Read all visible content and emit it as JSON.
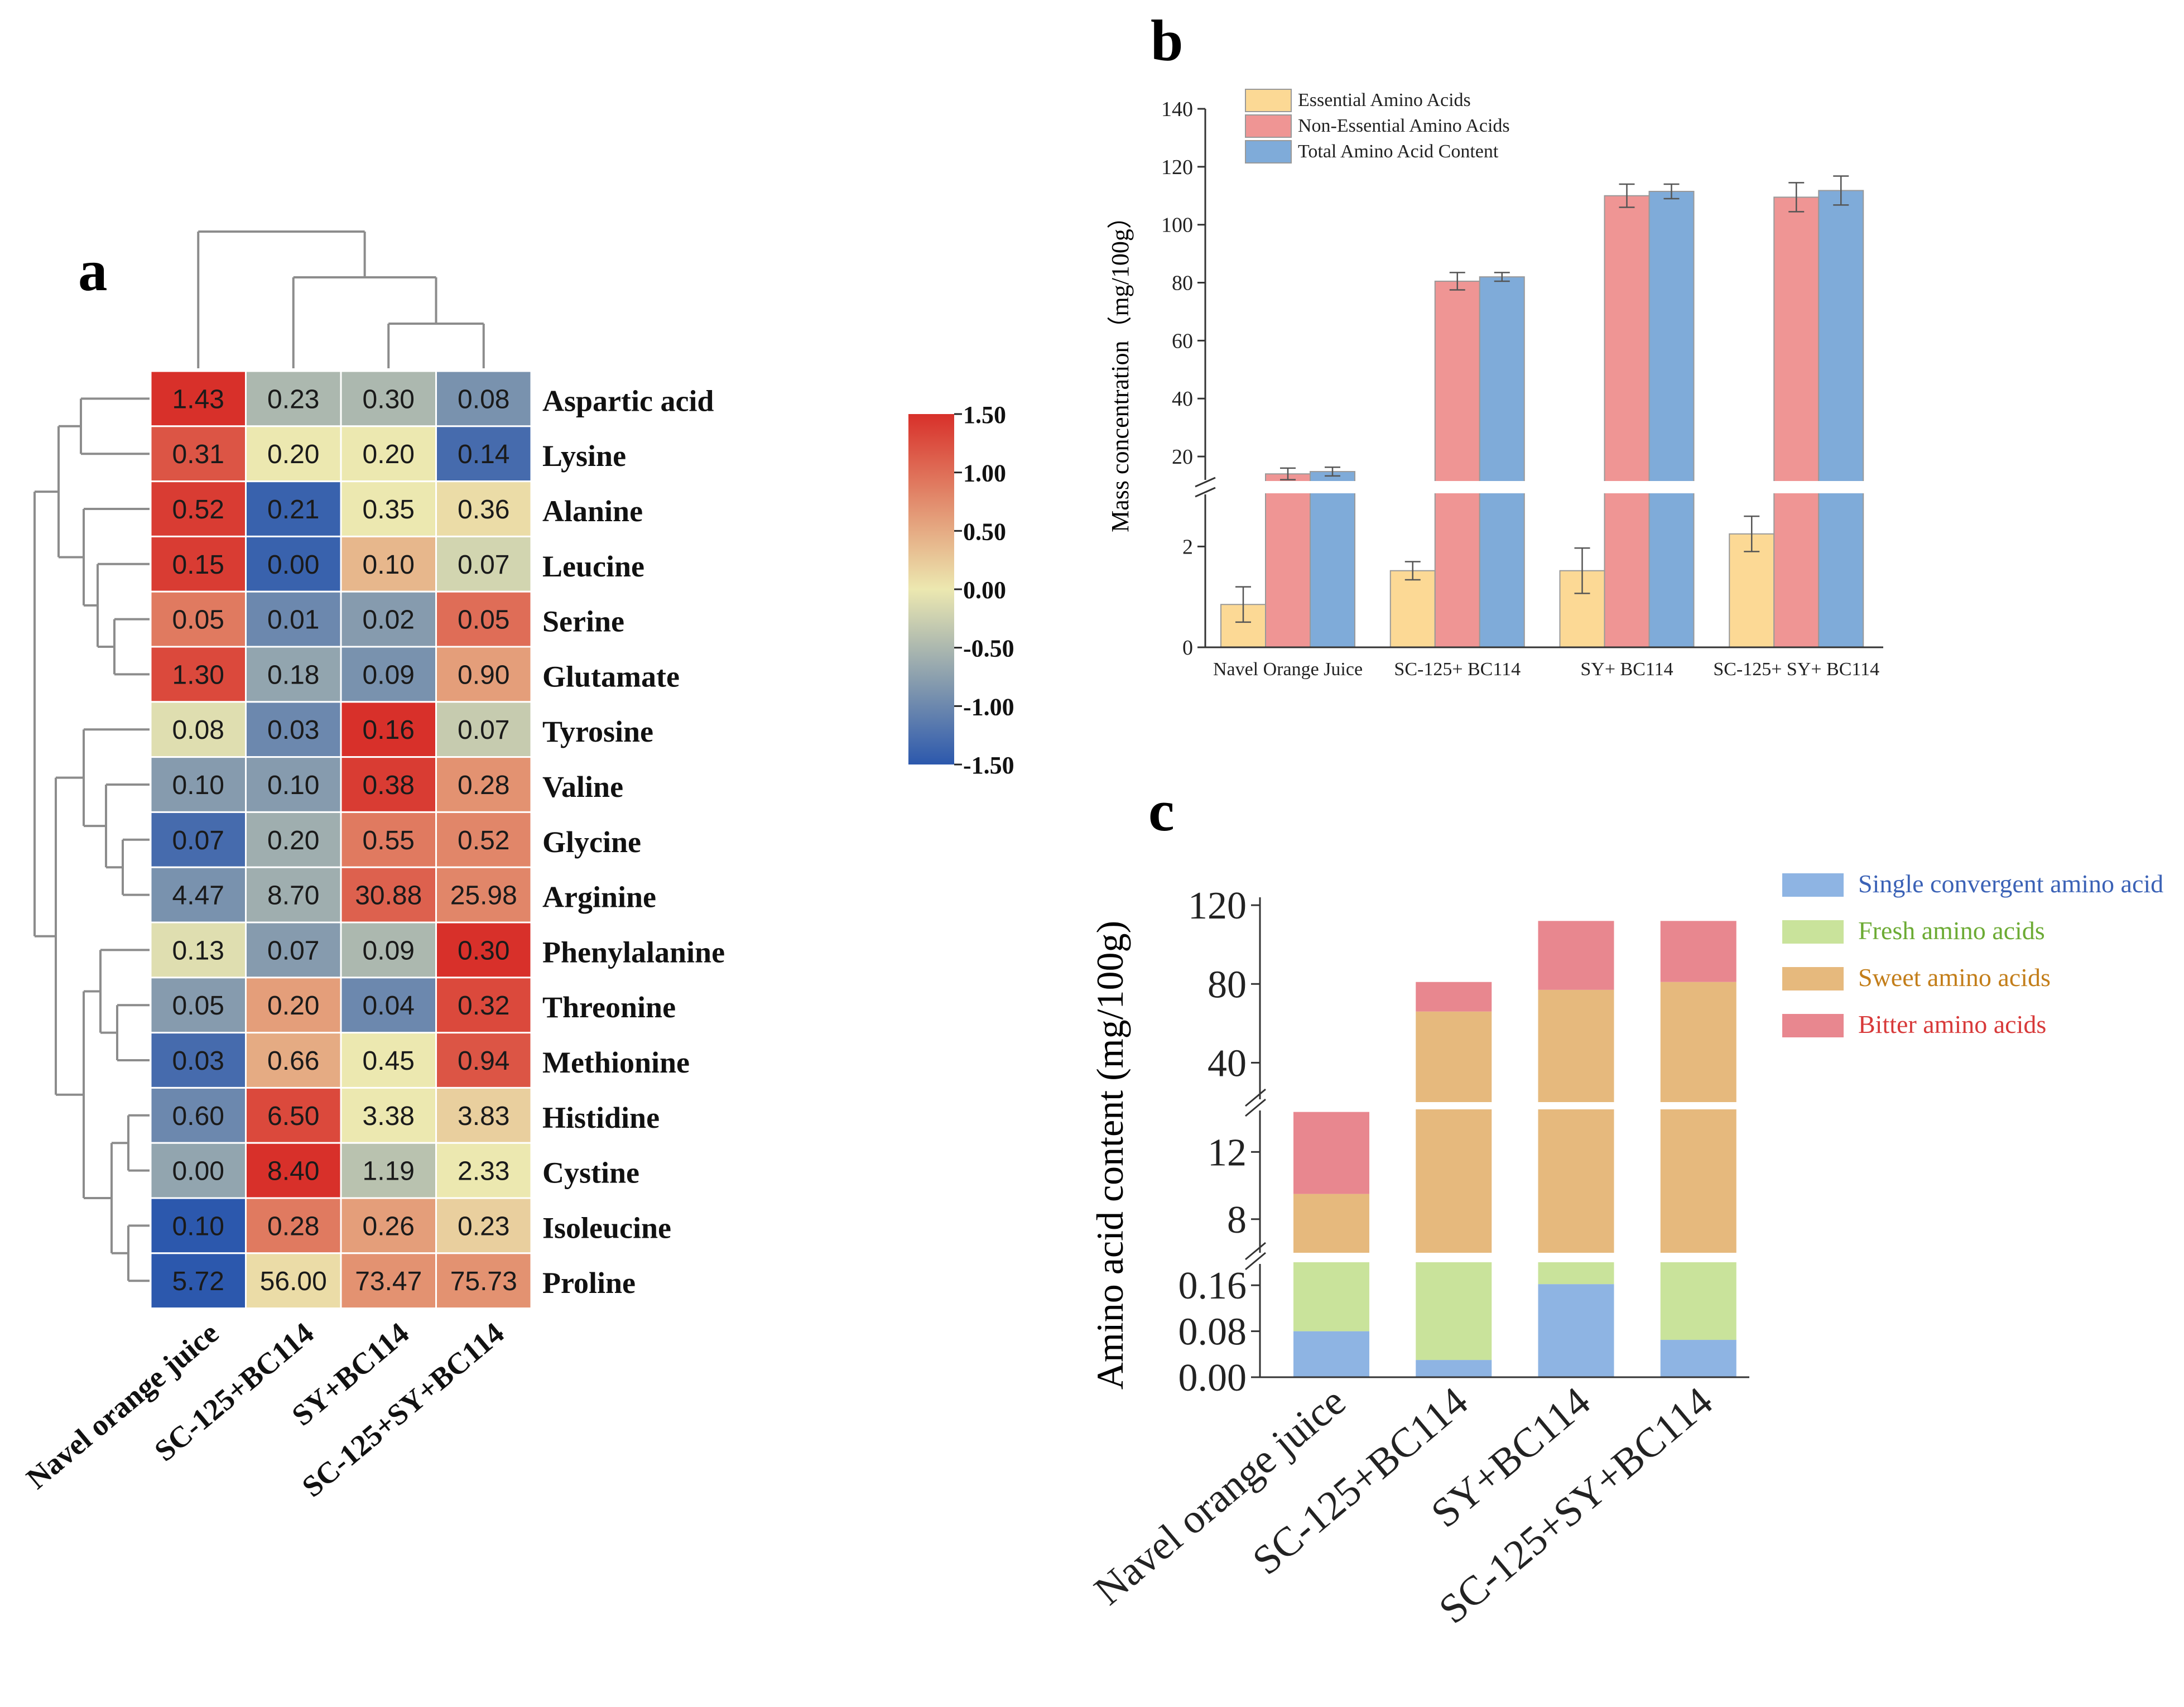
{
  "chart_data": [
    {
      "type": "heatmap",
      "panel_label": "a",
      "columns": [
        "Navel orange juice",
        "SC-125+BC114",
        "SY+BC114",
        "SC-125+SY+BC114"
      ],
      "rows": [
        "Aspartic acid",
        "Lysine",
        "Alanine",
        "Leucine",
        "Serine",
        "Glutamate",
        "Tyrosine",
        "Valine",
        "Glycine",
        "Arginine",
        "Phenylalanine",
        "Threonine",
        "Methionine",
        "Histidine",
        "Cystine",
        "Isoleucine",
        "Proline"
      ],
      "values": [
        [
          "1.43",
          "0.23",
          "0.30",
          "0.08"
        ],
        [
          "0.31",
          "0.20",
          "0.20",
          "0.14"
        ],
        [
          "0.52",
          "0.21",
          "0.35",
          "0.36"
        ],
        [
          "0.15",
          "0.00",
          "0.10",
          "0.07"
        ],
        [
          "0.05",
          "0.01",
          "0.02",
          "0.05"
        ],
        [
          "1.30",
          "0.18",
          "0.09",
          "0.90"
        ],
        [
          "0.08",
          "0.03",
          "0.16",
          "0.07"
        ],
        [
          "0.10",
          "0.10",
          "0.38",
          "0.28"
        ],
        [
          "0.07",
          "0.20",
          "0.55",
          "0.52"
        ],
        [
          "4.47",
          "8.70",
          "30.88",
          "25.98"
        ],
        [
          "0.13",
          "0.07",
          "0.09",
          "0.30"
        ],
        [
          "0.05",
          "0.20",
          "0.04",
          "0.32"
        ],
        [
          "0.03",
          "0.66",
          "0.45",
          "0.94"
        ],
        [
          "0.60",
          "6.50",
          "3.38",
          "3.83"
        ],
        [
          "0.00",
          "8.40",
          "1.19",
          "2.33"
        ],
        [
          "0.10",
          "0.28",
          "0.26",
          "0.23"
        ],
        [
          "5.72",
          "56.00",
          "73.47",
          "75.73"
        ]
      ],
      "z_scores": [
        [
          1.5,
          -0.5,
          -0.5,
          -0.9
        ],
        [
          1.2,
          0.0,
          0.0,
          -1.3
        ],
        [
          1.4,
          -1.4,
          0.0,
          0.1
        ],
        [
          1.4,
          -1.4,
          0.4,
          -0.2
        ],
        [
          0.9,
          -1.0,
          -0.8,
          1.0
        ],
        [
          1.3,
          -0.7,
          -0.9,
          0.6
        ],
        [
          -0.1,
          -1.0,
          1.5,
          -0.3
        ],
        [
          -0.8,
          -0.8,
          1.4,
          0.7
        ],
        [
          -1.3,
          -0.6,
          0.9,
          0.8
        ],
        [
          -0.9,
          -0.6,
          1.1,
          0.8
        ],
        [
          -0.1,
          -0.8,
          -0.5,
          1.5
        ],
        [
          -0.8,
          0.6,
          -1.0,
          1.3
        ],
        [
          -1.3,
          0.5,
          0.0,
          1.2
        ],
        [
          -1.0,
          1.3,
          0.0,
          0.2
        ],
        [
          -0.7,
          1.6,
          -0.4,
          0.0
        ],
        [
          -1.5,
          0.9,
          0.6,
          0.2
        ],
        [
          -1.5,
          0.1,
          0.7,
          0.7
        ]
      ],
      "colorbar": {
        "min": -1.5,
        "max": 1.5,
        "ticks": [
          "1.50",
          "1.00",
          "0.50",
          "0.00",
          "-0.50",
          "-1.00",
          "-1.50"
        ]
      },
      "colors": {
        "low": "#2c58ad",
        "mid": "#ece8b0",
        "high": "#d8302a"
      }
    },
    {
      "type": "bar",
      "panel_label": "b",
      "ylabel": "Mass concentration（mg/100g）",
      "categories": [
        "Navel Orange Juice",
        "SC-125+ BC114",
        "SY+ BC114",
        "SC-125+ SY+ BC114"
      ],
      "series": [
        {
          "name": "Essential Amino Acids",
          "color": "#fcd995",
          "values": [
            0.85,
            1.52,
            1.52,
            2.25
          ],
          "errors": [
            0.35,
            0.18,
            0.45,
            0.35
          ]
        },
        {
          "name": "Non-Essential Amino Acids",
          "color": "#ef9594",
          "values": [
            14.0,
            80.5,
            110.0,
            109.5
          ],
          "errors": [
            2.0,
            3.0,
            4.0,
            5.0
          ]
        },
        {
          "name": "Total Amino Acid Content",
          "color": "#7fabd9",
          "values": [
            14.8,
            82.0,
            111.5,
            111.8
          ],
          "errors": [
            1.5,
            1.5,
            2.5,
            5.0
          ]
        }
      ],
      "y_axis_lower": {
        "range": [
          0,
          3.1
        ],
        "ticks": [
          "0",
          "2"
        ]
      },
      "y_axis_upper": {
        "range": [
          10,
          140
        ],
        "ticks": [
          "20",
          "40",
          "60",
          "80",
          "100",
          "120",
          "140"
        ]
      },
      "axis_break": true
    },
    {
      "type": "bar",
      "stacked": true,
      "panel_label": "c",
      "ylabel": "Amino acid content (mg/100g)",
      "categories": [
        "Navel orange juice",
        "SC-125+BC114",
        "SY+BC114",
        "SC-125+SY+BC114"
      ],
      "series": [
        {
          "name": "Single convergent amino acid",
          "color": "#8eb4e3",
          "label_color": "#3b62b6",
          "values": [
            0.08,
            0.03,
            0.162,
            0.065
          ]
        },
        {
          "name": "Fresh amino acids",
          "color": "#c9e39b",
          "label_color": "#6cab34",
          "values": [
            0.19,
            0.35,
            0.04,
            0.2
          ]
        },
        {
          "name": "Sweet amino acids",
          "color": "#e6b97d",
          "label_color": "#c37e1a",
          "values": [
            9.0,
            66.0,
            77.0,
            81.0
          ]
        },
        {
          "name": "Bitter amino acids",
          "color": "#e8878f",
          "label_color": "#d83a3a",
          "values": [
            6.0,
            15.0,
            35.0,
            31.0
          ]
        }
      ],
      "totals": [
        15.0,
        81.0,
        112.0,
        112.0
      ],
      "y_axis_segments": [
        {
          "range": [
            0,
            0.2
          ],
          "ticks": [
            "0.00",
            "0.08",
            "0.16"
          ]
        },
        {
          "range": [
            6,
            14.8
          ],
          "ticks": [
            "8",
            "12"
          ]
        },
        {
          "range": [
            20,
            124
          ],
          "ticks": [
            "40",
            "80",
            "120"
          ]
        }
      ],
      "axis_breaks": true
    }
  ]
}
